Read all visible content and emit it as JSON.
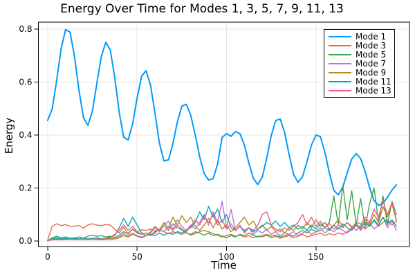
{
  "chart_data": {
    "type": "line",
    "title": "Energy Over Time for Modes 1, 3, 5, 7, 9, 11, 13",
    "xlabel": "Time",
    "ylabel": "Energy",
    "xlim": [
      -5.2,
      202.3
    ],
    "ylim": [
      -0.021,
      0.826
    ],
    "xticks": [
      0,
      50,
      100,
      150
    ],
    "xtick_labels": [
      "0",
      "50",
      "100",
      "150"
    ],
    "yticks": [
      0.0,
      0.2,
      0.4,
      0.6,
      0.8
    ],
    "ytick_labels": [
      "0.0",
      "0.2",
      "0.4",
      "0.6",
      "0.8"
    ],
    "grid": true,
    "legend_position": "top-right",
    "frame_color": "#000000",
    "grid_color": "#e4e4e4",
    "t_start": 0,
    "t_step": 2.5,
    "t_end": 195,
    "series": [
      {
        "name": "Mode 1",
        "color": "#009AFA",
        "width": 2,
        "values": [
          0.455,
          0.498,
          0.605,
          0.725,
          0.798,
          0.788,
          0.697,
          0.568,
          0.465,
          0.437,
          0.49,
          0.594,
          0.697,
          0.75,
          0.722,
          0.617,
          0.485,
          0.392,
          0.381,
          0.443,
          0.54,
          0.622,
          0.643,
          0.589,
          0.482,
          0.369,
          0.302,
          0.306,
          0.366,
          0.449,
          0.509,
          0.516,
          0.474,
          0.4,
          0.318,
          0.254,
          0.23,
          0.235,
          0.29,
          0.39,
          0.405,
          0.395,
          0.413,
          0.405,
          0.362,
          0.294,
          0.236,
          0.213,
          0.241,
          0.313,
          0.397,
          0.455,
          0.46,
          0.409,
          0.326,
          0.251,
          0.221,
          0.243,
          0.299,
          0.362,
          0.4,
          0.394,
          0.336,
          0.256,
          0.191,
          0.174,
          0.203,
          0.257,
          0.309,
          0.33,
          0.311,
          0.262,
          0.202,
          0.153,
          0.134,
          0.143,
          0.165,
          0.192,
          0.212
        ]
      },
      {
        "name": "Mode 3",
        "color": "#E26E47",
        "width": 1.4,
        "values": [
          0.002,
          0.055,
          0.065,
          0.058,
          0.062,
          0.055,
          0.056,
          0.058,
          0.048,
          0.06,
          0.065,
          0.06,
          0.058,
          0.062,
          0.06,
          0.045,
          0.03,
          0.052,
          0.025,
          0.045,
          0.035,
          0.042,
          0.04,
          0.045,
          0.038,
          0.042,
          0.035,
          0.028,
          0.035,
          0.03,
          0.025,
          0.032,
          0.022,
          0.028,
          0.035,
          0.04,
          0.035,
          0.028,
          0.022,
          0.015,
          0.02,
          0.025,
          0.018,
          0.022,
          0.015,
          0.02,
          0.012,
          0.018,
          0.015,
          0.022,
          0.012,
          0.018,
          0.01,
          0.015,
          0.02,
          0.012,
          0.018,
          0.025,
          0.015,
          0.02,
          0.025,
          0.03,
          0.02,
          0.028,
          0.022,
          0.03,
          0.025,
          0.035,
          0.05,
          0.07,
          0.065,
          0.045,
          0.06,
          0.075,
          0.055,
          0.07,
          0.08,
          0.06,
          0.075
        ]
      },
      {
        "name": "Mode 5",
        "color": "#3EA44E",
        "width": 1.4,
        "values": [
          0.001,
          0.012,
          0.018,
          0.012,
          0.015,
          0.01,
          0.012,
          0.015,
          0.01,
          0.018,
          0.022,
          0.018,
          0.02,
          0.015,
          0.018,
          0.012,
          0.022,
          0.035,
          0.028,
          0.045,
          0.03,
          0.025,
          0.03,
          0.022,
          0.035,
          0.045,
          0.06,
          0.04,
          0.065,
          0.05,
          0.042,
          0.03,
          0.025,
          0.035,
          0.03,
          0.022,
          0.03,
          0.02,
          0.025,
          0.018,
          0.012,
          0.02,
          0.015,
          0.025,
          0.02,
          0.03,
          0.022,
          0.015,
          0.02,
          0.025,
          0.018,
          0.022,
          0.015,
          0.02,
          0.025,
          0.018,
          0.03,
          0.04,
          0.03,
          0.045,
          0.035,
          0.04,
          0.05,
          0.07,
          0.17,
          0.06,
          0.21,
          0.08,
          0.19,
          0.06,
          0.16,
          0.05,
          0.14,
          0.2,
          0.07,
          0.17,
          0.06,
          0.15,
          0.1
        ]
      },
      {
        "name": "Mode 7",
        "color": "#C371D2",
        "width": 1.4,
        "values": [
          0.001,
          0.004,
          0.006,
          0.004,
          0.005,
          0.006,
          0.004,
          0.006,
          0.005,
          0.004,
          0.006,
          0.005,
          0.004,
          0.006,
          0.005,
          0.008,
          0.015,
          0.028,
          0.018,
          0.03,
          0.02,
          0.015,
          0.02,
          0.03,
          0.05,
          0.035,
          0.06,
          0.075,
          0.045,
          0.08,
          0.055,
          0.04,
          0.06,
          0.045,
          0.07,
          0.1,
          0.06,
          0.11,
          0.07,
          0.15,
          0.05,
          0.12,
          0.04,
          0.06,
          0.03,
          0.05,
          0.025,
          0.04,
          0.03,
          0.045,
          0.025,
          0.035,
          0.02,
          0.03,
          0.025,
          0.035,
          0.02,
          0.03,
          0.04,
          0.025,
          0.035,
          0.05,
          0.03,
          0.045,
          0.035,
          0.05,
          0.04,
          0.03,
          0.045,
          0.06,
          0.04,
          0.055,
          0.07,
          0.045,
          0.06,
          0.09,
          0.05,
          0.075,
          0.04
        ]
      },
      {
        "name": "Mode 9",
        "color": "#AC8D18",
        "width": 1.4,
        "values": [
          0.001,
          0.005,
          0.008,
          0.005,
          0.006,
          0.008,
          0.005,
          0.007,
          0.006,
          0.008,
          0.006,
          0.008,
          0.006,
          0.008,
          0.01,
          0.008,
          0.012,
          0.02,
          0.015,
          0.025,
          0.018,
          0.012,
          0.02,
          0.035,
          0.055,
          0.04,
          0.07,
          0.05,
          0.09,
          0.06,
          0.095,
          0.07,
          0.09,
          0.055,
          0.04,
          0.06,
          0.085,
          0.05,
          0.08,
          0.045,
          0.06,
          0.035,
          0.05,
          0.07,
          0.09,
          0.06,
          0.075,
          0.045,
          0.06,
          0.04,
          0.055,
          0.035,
          0.045,
          0.03,
          0.05,
          0.04,
          0.06,
          0.045,
          0.07,
          0.05,
          0.08,
          0.055,
          0.07,
          0.045,
          0.06,
          0.08,
          0.055,
          0.07,
          0.05,
          0.065,
          0.045,
          0.08,
          0.06,
          0.1,
          0.07,
          0.13,
          0.09,
          0.14,
          0.075
        ]
      },
      {
        "name": "Mode 11",
        "color": "#00A9AD",
        "width": 1.4,
        "values": [
          0.001,
          0.008,
          0.012,
          0.008,
          0.01,
          0.008,
          0.01,
          0.008,
          0.012,
          0.008,
          0.01,
          0.012,
          0.008,
          0.01,
          0.015,
          0.02,
          0.05,
          0.085,
          0.055,
          0.09,
          0.06,
          0.03,
          0.02,
          0.025,
          0.02,
          0.03,
          0.022,
          0.03,
          0.025,
          0.035,
          0.03,
          0.04,
          0.05,
          0.07,
          0.11,
          0.08,
          0.13,
          0.09,
          0.12,
          0.07,
          0.1,
          0.05,
          0.04,
          0.055,
          0.04,
          0.05,
          0.035,
          0.045,
          0.055,
          0.07,
          0.06,
          0.075,
          0.055,
          0.07,
          0.05,
          0.06,
          0.045,
          0.055,
          0.04,
          0.06,
          0.045,
          0.065,
          0.05,
          0.04,
          0.06,
          0.045,
          0.065,
          0.05,
          0.04,
          0.06,
          0.05,
          0.07,
          0.055,
          0.08,
          0.06,
          0.09,
          0.065,
          0.08,
          0.055
        ]
      },
      {
        "name": "Mode 13",
        "color": "#ED5D92",
        "width": 1.4,
        "values": [
          0.001,
          0.006,
          0.004,
          0.006,
          0.005,
          0.007,
          0.005,
          0.007,
          0.005,
          0.008,
          0.006,
          0.008,
          0.006,
          0.01,
          0.012,
          0.025,
          0.04,
          0.06,
          0.04,
          0.055,
          0.035,
          0.025,
          0.03,
          0.02,
          0.03,
          0.045,
          0.035,
          0.055,
          0.04,
          0.06,
          0.045,
          0.035,
          0.055,
          0.08,
          0.06,
          0.095,
          0.07,
          0.1,
          0.06,
          0.08,
          0.045,
          0.065,
          0.04,
          0.055,
          0.035,
          0.05,
          0.04,
          0.06,
          0.1,
          0.11,
          0.06,
          0.045,
          0.035,
          0.05,
          0.04,
          0.055,
          0.07,
          0.1,
          0.06,
          0.09,
          0.055,
          0.075,
          0.05,
          0.065,
          0.045,
          0.06,
          0.05,
          0.07,
          0.055,
          0.04,
          0.06,
          0.09,
          0.07,
          0.12,
          0.09,
          0.15,
          0.1,
          0.145,
          0.08
        ]
      }
    ]
  }
}
